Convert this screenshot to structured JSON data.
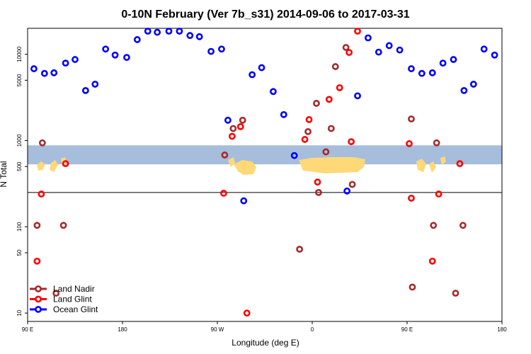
{
  "chart_data": {
    "type": "scatter",
    "title": "0-10N February (Ver 7b_s31)   2014-09-06 to 2017-03-31",
    "xlabel": "Longitude (deg E)",
    "ylabel": "N Total",
    "y_scale": "log",
    "xlim": [
      90,
      540
    ],
    "ylim": [
      8,
      20000
    ],
    "x_ticks": [
      {
        "value": 90,
        "label": "90 E"
      },
      {
        "value": 180,
        "label": "180"
      },
      {
        "value": 270,
        "label": "90 W"
      },
      {
        "value": 360,
        "label": "0"
      },
      {
        "value": 450,
        "label": "90 E"
      },
      {
        "value": 540,
        "label": "180"
      }
    ],
    "y_ticks": [
      {
        "value": 10,
        "label": "10"
      },
      {
        "value": 50,
        "label": "50"
      },
      {
        "value": 100,
        "label": "100"
      },
      {
        "value": 500,
        "label": "500"
      },
      {
        "value": 1000,
        "label": "1000"
      },
      {
        "value": 5000,
        "label": "5000"
      },
      {
        "value": 10000,
        "label": "10000"
      }
    ],
    "reference_line_y": 250,
    "map_band_y": [
      530,
      880
    ],
    "colors": {
      "ocean": "#a6bddb",
      "land": "#ffd977",
      "axis": "#000000"
    },
    "series": [
      {
        "name": "Land Nadir",
        "color": "#a52a2a",
        "points": [
          {
            "x": 99,
            "y": 104
          },
          {
            "x": 104,
            "y": 940
          },
          {
            "x": 117,
            "y": 17
          },
          {
            "x": 124,
            "y": 104
          },
          {
            "x": 277,
            "y": 680
          },
          {
            "x": 285,
            "y": 1380
          },
          {
            "x": 294,
            "y": 1720
          },
          {
            "x": 356,
            "y": 1270
          },
          {
            "x": 378,
            "y": 1380
          },
          {
            "x": 364,
            "y": 2700
          },
          {
            "x": 366,
            "y": 250
          },
          {
            "x": 373,
            "y": 740
          },
          {
            "x": 382,
            "y": 7200
          },
          {
            "x": 392,
            "y": 12000
          },
          {
            "x": 398,
            "y": 310
          },
          {
            "x": 348,
            "y": 55
          },
          {
            "x": 454,
            "y": 1780
          },
          {
            "x": 455,
            "y": 20
          },
          {
            "x": 475,
            "y": 104
          },
          {
            "x": 478,
            "y": 940
          },
          {
            "x": 496,
            "y": 17
          },
          {
            "x": 503,
            "y": 104
          }
        ]
      },
      {
        "name": "Land Glint",
        "color": "#ff0000",
        "points": [
          {
            "x": 99,
            "y": 40
          },
          {
            "x": 103,
            "y": 240
          },
          {
            "x": 126,
            "y": 540
          },
          {
            "x": 276,
            "y": 245
          },
          {
            "x": 284,
            "y": 1120
          },
          {
            "x": 292,
            "y": 1450
          },
          {
            "x": 298,
            "y": 10
          },
          {
            "x": 353,
            "y": 1030
          },
          {
            "x": 357,
            "y": 1750
          },
          {
            "x": 365,
            "y": 330
          },
          {
            "x": 376,
            "y": 3000
          },
          {
            "x": 386,
            "y": 4100
          },
          {
            "x": 395,
            "y": 10500
          },
          {
            "x": 403,
            "y": 20000
          },
          {
            "x": 397,
            "y": 970
          },
          {
            "x": 452,
            "y": 920
          },
          {
            "x": 454,
            "y": 215
          },
          {
            "x": 474,
            "y": 40
          },
          {
            "x": 480,
            "y": 240
          },
          {
            "x": 500,
            "y": 540
          }
        ]
      },
      {
        "name": "Ocean Glint",
        "color": "#0000ff",
        "points": [
          {
            "x": 96,
            "y": 6800
          },
          {
            "x": 106,
            "y": 6000
          },
          {
            "x": 115,
            "y": 6100
          },
          {
            "x": 126,
            "y": 7900
          },
          {
            "x": 135,
            "y": 8700
          },
          {
            "x": 145,
            "y": 3800
          },
          {
            "x": 154,
            "y": 4500
          },
          {
            "x": 164,
            "y": 11500
          },
          {
            "x": 173,
            "y": 9800
          },
          {
            "x": 184,
            "y": 9200
          },
          {
            "x": 194,
            "y": 14800
          },
          {
            "x": 204,
            "y": 19200
          },
          {
            "x": 213,
            "y": 18000
          },
          {
            "x": 224,
            "y": 22500
          },
          {
            "x": 234,
            "y": 21000
          },
          {
            "x": 244,
            "y": 16500
          },
          {
            "x": 253,
            "y": 16000
          },
          {
            "x": 264,
            "y": 10800
          },
          {
            "x": 274,
            "y": 11500
          },
          {
            "x": 280,
            "y": 1720
          },
          {
            "x": 295,
            "y": 200
          },
          {
            "x": 303,
            "y": 5800
          },
          {
            "x": 312,
            "y": 7000
          },
          {
            "x": 323,
            "y": 3700
          },
          {
            "x": 333,
            "y": 2000
          },
          {
            "x": 343,
            "y": 670
          },
          {
            "x": 393,
            "y": 260
          },
          {
            "x": 403,
            "y": 3300
          },
          {
            "x": 413,
            "y": 15500
          },
          {
            "x": 423,
            "y": 10600
          },
          {
            "x": 433,
            "y": 12600
          },
          {
            "x": 443,
            "y": 11200
          },
          {
            "x": 454,
            "y": 6800
          },
          {
            "x": 464,
            "y": 6000
          },
          {
            "x": 474,
            "y": 6100
          },
          {
            "x": 484,
            "y": 7900
          },
          {
            "x": 494,
            "y": 8700
          },
          {
            "x": 504,
            "y": 3800
          },
          {
            "x": 513,
            "y": 4500
          },
          {
            "x": 523,
            "y": 11500
          },
          {
            "x": 533,
            "y": 9800
          }
        ]
      }
    ],
    "legend": {
      "position": "bottom-left",
      "entries": [
        "Land Nadir",
        "Land Glint",
        "Ocean Glint"
      ]
    }
  }
}
